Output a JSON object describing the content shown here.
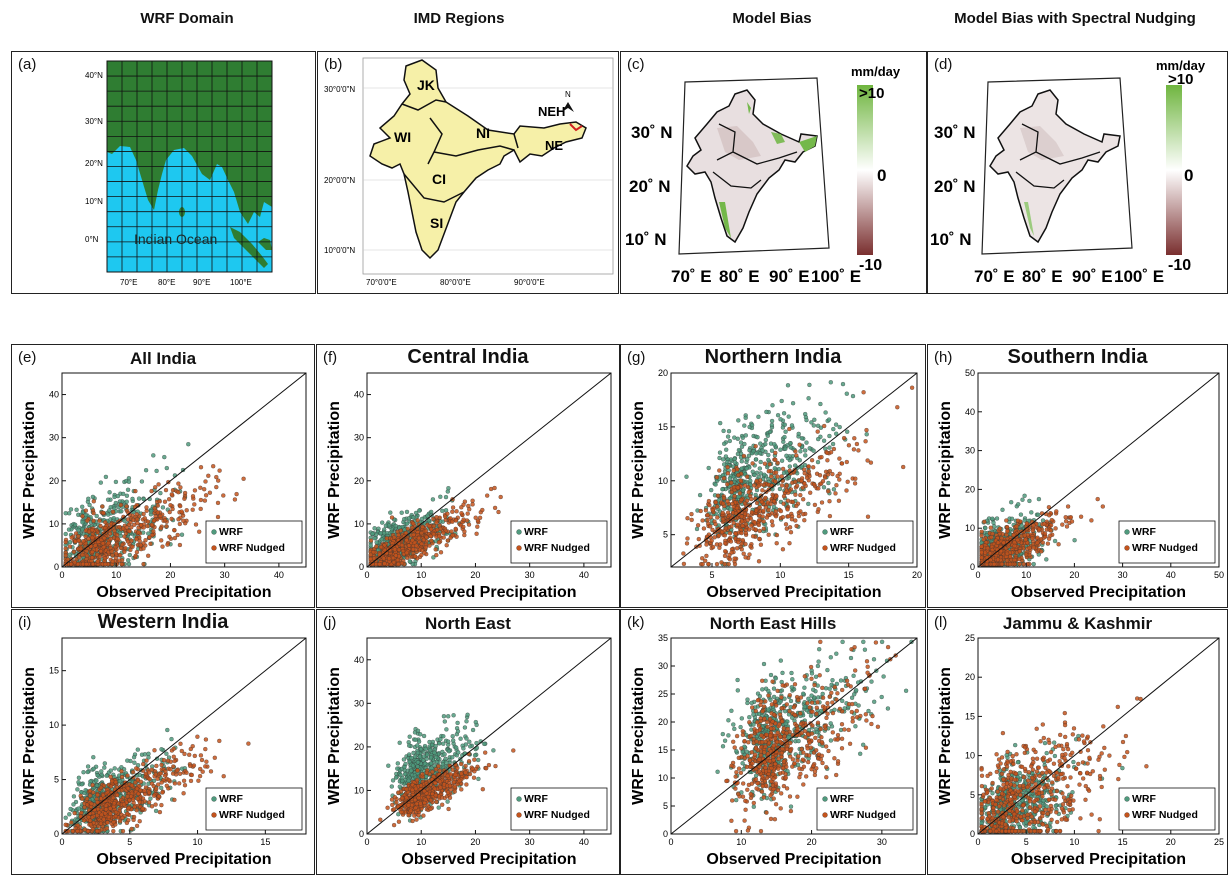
{
  "column_titles": [
    "WRF Domain",
    "IMD Regions",
    "Model Bias",
    "Model Bias with Spectral Nudging"
  ],
  "panel_a": {
    "label": "(a)",
    "ocean_label": "Indian Ocean",
    "lat_ticks": [
      "40°N",
      "30°N",
      "20°N",
      "10°N",
      "0°N"
    ],
    "lon_ticks": [
      "70°E",
      "80°E",
      "90°E",
      "100°E"
    ],
    "colors": {
      "land": "#2f7d32",
      "ocean": "#1ec8f0"
    }
  },
  "panel_b": {
    "label": "(b)",
    "regions": [
      "JK",
      "WI",
      "NI",
      "CI",
      "SI",
      "NE",
      "NEH"
    ],
    "north": "N",
    "lat_ticks": [
      "30°0'0\"N",
      "20°0'0\"N",
      "10°0'0\"N"
    ],
    "lon_ticks": [
      "70°0'0\"E",
      "80°0'0\"E",
      "90°0'0\"E"
    ],
    "fill": "#f6f0a8"
  },
  "panel_c": {
    "label": "(c)",
    "unit": "mm/day",
    "cbar_max": ">10",
    "cbar_mid": "0",
    "cbar_min": "-10",
    "lat_ticks": [
      "30˚ N",
      "20˚ N",
      "10˚ N"
    ],
    "lon_ticks": [
      "70˚ E",
      "80˚ E",
      "90˚ E",
      "100˚ E"
    ]
  },
  "panel_d": {
    "label": "(d)",
    "unit": "mm/day",
    "cbar_max": ">10",
    "cbar_mid": "0",
    "cbar_min": "-10",
    "lat_ticks": [
      "30˚ N",
      "20˚ N",
      "10˚ N"
    ],
    "lon_ticks": [
      "70˚ E",
      "80˚ E",
      "90˚ E",
      "100˚ E"
    ]
  },
  "colors": {
    "wrf": "#4f9a7d",
    "nudged": "#c4531c",
    "cbar_top": "#6fb53f",
    "cbar_bottom": "#7a2f2f"
  },
  "chart_data": [
    {
      "type": "scatter",
      "label": "(e)",
      "title": "All India",
      "xlabel": "Observed Precipitation",
      "ylabel": "WRF Precipitation",
      "xlim": [
        0,
        45
      ],
      "ylim": [
        0,
        45
      ],
      "xticks": [
        0,
        10,
        20,
        30,
        40
      ],
      "yticks": [
        0,
        10,
        20,
        30,
        40
      ],
      "legend": "bottom-right",
      "series": [
        {
          "name": "WRF",
          "center": [
            6,
            6
          ],
          "spread": [
            4,
            5
          ]
        },
        {
          "name": "WRF Nudged",
          "center": [
            8,
            5
          ],
          "spread": [
            6,
            4
          ]
        }
      ]
    },
    {
      "type": "scatter",
      "label": "(f)",
      "title": "Central India",
      "xlabel": "Observed Precipitation",
      "ylabel": "WRF Precipitation",
      "xlim": [
        0,
        45
      ],
      "ylim": [
        0,
        45
      ],
      "xticks": [
        0,
        10,
        20,
        30,
        40
      ],
      "yticks": [
        0,
        10,
        20,
        30,
        40
      ],
      "legend": "bottom-right",
      "series": [
        {
          "name": "WRF",
          "center": [
            5,
            5
          ],
          "spread": [
            3,
            3
          ]
        },
        {
          "name": "WRF Nudged",
          "center": [
            6,
            4
          ],
          "spread": [
            4,
            2
          ]
        }
      ]
    },
    {
      "type": "scatter",
      "label": "(g)",
      "title": "Northern India",
      "xlabel": "Observed Precipitation",
      "ylabel": "WRF Precipitation",
      "xlim": [
        2,
        20
      ],
      "ylim": [
        2,
        20
      ],
      "xticks": [
        5,
        10,
        15,
        20
      ],
      "yticks": [
        5,
        10,
        15,
        20
      ],
      "legend": "bottom-right",
      "series": [
        {
          "name": "WRF",
          "center": [
            7.5,
            10
          ],
          "spread": [
            2,
            2.5
          ]
        },
        {
          "name": "WRF Nudged",
          "center": [
            7.5,
            7
          ],
          "spread": [
            2.5,
            2
          ]
        }
      ]
    },
    {
      "type": "scatter",
      "label": "(h)",
      "title": "Southern India",
      "xlabel": "Observed Precipitation",
      "ylabel": "WRF Precipitation",
      "xlim": [
        0,
        50
      ],
      "ylim": [
        0,
        50
      ],
      "xticks": [
        0,
        10,
        20,
        30,
        40,
        50
      ],
      "yticks": [
        0,
        10,
        20,
        30,
        40,
        50
      ],
      "legend": "bottom-right",
      "series": [
        {
          "name": "WRF",
          "center": [
            4,
            4
          ],
          "spread": [
            3,
            4
          ]
        },
        {
          "name": "WRF Nudged",
          "center": [
            5,
            4
          ],
          "spread": [
            4,
            3
          ]
        }
      ]
    },
    {
      "type": "scatter",
      "label": "(i)",
      "title": "Western India",
      "xlabel": "Observed Precipitation",
      "ylabel": "WRF Precipitation",
      "xlim": [
        0,
        18
      ],
      "ylim": [
        0,
        18
      ],
      "xticks": [
        0,
        5,
        10,
        15
      ],
      "yticks": [
        0,
        5,
        10,
        15
      ],
      "legend": "bottom-right",
      "series": [
        {
          "name": "WRF",
          "center": [
            3,
            3
          ],
          "spread": [
            1.5,
            1.5
          ]
        },
        {
          "name": "WRF Nudged",
          "center": [
            4,
            2.8
          ],
          "spread": [
            2,
            1.2
          ]
        }
      ]
    },
    {
      "type": "scatter",
      "label": "(j)",
      "title": "North East",
      "xlabel": "Observed Precipitation",
      "ylabel": "WRF Precipitation",
      "xlim": [
        0,
        45
      ],
      "ylim": [
        0,
        45
      ],
      "xticks": [
        0,
        10,
        20,
        30,
        40
      ],
      "yticks": [
        0,
        10,
        20,
        30,
        40
      ],
      "legend": "bottom-right",
      "series": [
        {
          "name": "WRF",
          "center": [
            10,
            14
          ],
          "spread": [
            3,
            4
          ]
        },
        {
          "name": "WRF Nudged",
          "center": [
            10,
            9
          ],
          "spread": [
            3,
            2
          ]
        }
      ]
    },
    {
      "type": "scatter",
      "label": "(k)",
      "title": "North East Hills",
      "xlabel": "Observed Precipitation",
      "ylabel": "WRF Precipitation",
      "xlim": [
        0,
        35
      ],
      "ylim": [
        0,
        35
      ],
      "xticks": [
        0,
        10,
        20,
        30
      ],
      "yticks": [
        0,
        5,
        10,
        15,
        20,
        25,
        30,
        35
      ],
      "legend": "bottom-right",
      "series": [
        {
          "name": "WRF",
          "center": [
            15,
            18
          ],
          "spread": [
            4,
            5
          ]
        },
        {
          "name": "WRF Nudged",
          "center": [
            15,
            15
          ],
          "spread": [
            4,
            5
          ]
        }
      ]
    },
    {
      "type": "scatter",
      "label": "(l)",
      "title": "Jammu & Kashmir",
      "xlabel": "Observed Precipitation",
      "ylabel": "WRF Precipitation",
      "xlim": [
        0,
        25
      ],
      "ylim": [
        0,
        25
      ],
      "xticks": [
        0,
        5,
        10,
        15,
        20,
        25
      ],
      "yticks": [
        0,
        5,
        10,
        15,
        20,
        25
      ],
      "legend": "bottom-right",
      "series": [
        {
          "name": "WRF",
          "center": [
            3,
            3
          ],
          "spread": [
            2,
            2.5
          ]
        },
        {
          "name": "WRF Nudged",
          "center": [
            4,
            4
          ],
          "spread": [
            3,
            3.5
          ]
        }
      ]
    }
  ]
}
